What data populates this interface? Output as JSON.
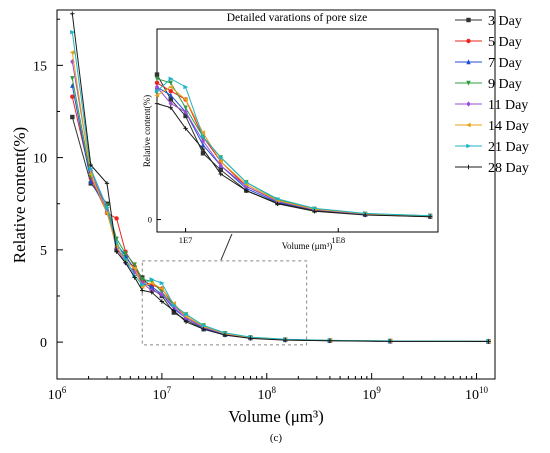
{
  "chart_data": {
    "type": "line",
    "x_scale": "log",
    "xlabel": "Volume (μm³)",
    "ylabel": "Relative content(%)",
    "xlim": [
      1000000,
      15000000000
    ],
    "ylim": [
      -2,
      18
    ],
    "x_ticks": [
      {
        "value": 1000000,
        "base": "10",
        "exp": "6"
      },
      {
        "value": 10000000,
        "base": "10",
        "exp": "7"
      },
      {
        "value": 100000000,
        "base": "10",
        "exp": "8"
      },
      {
        "value": 1000000000,
        "base": "10",
        "exp": "9"
      },
      {
        "value": 10000000000,
        "base": "10",
        "exp": "10"
      }
    ],
    "y_ticks": [
      {
        "value": 0,
        "label": "0"
      },
      {
        "value": 5,
        "label": "5"
      },
      {
        "value": 10,
        "label": "10"
      },
      {
        "value": 15,
        "label": "15"
      }
    ],
    "caption": "(c)",
    "legend_position": "top-right",
    "series": [
      {
        "name": "3 Day",
        "color": "#333333",
        "marker": "square",
        "points": [
          [
            1400000,
            12.2
          ],
          [
            2100000,
            8.6
          ],
          [
            3000000,
            7.5
          ],
          [
            3700000,
            5.0
          ],
          [
            4500000,
            4.6
          ],
          [
            5500000,
            4.0
          ],
          [
            6500000,
            3.5
          ],
          [
            8000000,
            2.9
          ],
          [
            10000000,
            2.5
          ],
          [
            13000000,
            1.6
          ],
          [
            17000000,
            1.2
          ],
          [
            25000000,
            0.7
          ],
          [
            40000000,
            0.4
          ],
          [
            70000000,
            0.22
          ],
          [
            150000000,
            0.12
          ],
          [
            400000000,
            0.07
          ],
          [
            1500000000,
            0.05
          ],
          [
            13000000000,
            0.03
          ]
        ]
      },
      {
        "name": "5 Day",
        "color": "#e8261e",
        "marker": "circle",
        "points": [
          [
            1400000,
            13.3
          ],
          [
            2100000,
            8.9
          ],
          [
            3000000,
            7.0
          ],
          [
            3700000,
            6.7
          ],
          [
            4500000,
            4.9
          ],
          [
            5500000,
            4.1
          ],
          [
            6500000,
            3.3
          ],
          [
            8000000,
            3.1
          ],
          [
            10000000,
            2.9
          ],
          [
            13000000,
            2.0
          ],
          [
            17000000,
            1.4
          ],
          [
            25000000,
            0.8
          ],
          [
            40000000,
            0.45
          ],
          [
            70000000,
            0.25
          ],
          [
            150000000,
            0.14
          ],
          [
            400000000,
            0.08
          ],
          [
            1500000000,
            0.06
          ],
          [
            13000000000,
            0.05
          ]
        ]
      },
      {
        "name": "7 Day",
        "color": "#1f4fd6",
        "marker": "triangle",
        "points": [
          [
            1400000,
            13.9
          ],
          [
            2100000,
            8.7
          ],
          [
            3000000,
            7.2
          ],
          [
            3700000,
            5.3
          ],
          [
            4500000,
            4.7
          ],
          [
            5500000,
            3.9
          ],
          [
            6500000,
            3.2
          ],
          [
            8000000,
            3.0
          ],
          [
            10000000,
            2.6
          ],
          [
            13000000,
            1.8
          ],
          [
            17000000,
            1.3
          ],
          [
            25000000,
            0.75
          ],
          [
            40000000,
            0.42
          ],
          [
            70000000,
            0.24
          ],
          [
            150000000,
            0.13
          ],
          [
            400000000,
            0.08
          ],
          [
            1500000000,
            0.05
          ],
          [
            13000000000,
            0.04
          ]
        ]
      },
      {
        "name": "9 Day",
        "color": "#2e9c3e",
        "marker": "triangle-down",
        "points": [
          [
            1400000,
            14.3
          ],
          [
            2100000,
            9.0
          ],
          [
            3000000,
            7.4
          ],
          [
            3700000,
            5.6
          ],
          [
            4500000,
            4.8
          ],
          [
            5500000,
            4.2
          ],
          [
            6500000,
            3.4
          ],
          [
            8000000,
            3.3
          ],
          [
            10000000,
            2.7
          ],
          [
            13000000,
            2.0
          ],
          [
            17000000,
            1.5
          ],
          [
            25000000,
            0.9
          ],
          [
            40000000,
            0.48
          ],
          [
            70000000,
            0.26
          ],
          [
            150000000,
            0.14
          ],
          [
            400000000,
            0.09
          ],
          [
            1500000000,
            0.06
          ],
          [
            13000000000,
            0.05
          ]
        ]
      },
      {
        "name": "11 Day",
        "color": "#9b4fd6",
        "marker": "diamond",
        "points": [
          [
            1400000,
            15.2
          ],
          [
            2100000,
            9.3
          ],
          [
            3000000,
            7.1
          ],
          [
            3700000,
            5.1
          ],
          [
            4500000,
            4.3
          ],
          [
            5500000,
            3.8
          ],
          [
            6500000,
            3.2
          ],
          [
            8000000,
            2.8
          ],
          [
            10000000,
            2.6
          ],
          [
            13000000,
            1.9
          ],
          [
            17000000,
            1.3
          ],
          [
            25000000,
            0.8
          ],
          [
            40000000,
            0.44
          ],
          [
            70000000,
            0.24
          ],
          [
            150000000,
            0.13
          ],
          [
            400000000,
            0.08
          ],
          [
            1500000000,
            0.05
          ],
          [
            13000000000,
            0.04
          ]
        ]
      },
      {
        "name": "14 Day",
        "color": "#e8a21a",
        "marker": "triangle-left",
        "points": [
          [
            1400000,
            15.7
          ],
          [
            2100000,
            9.1
          ],
          [
            3000000,
            7.0
          ],
          [
            3700000,
            5.2
          ],
          [
            4500000,
            4.4
          ],
          [
            5500000,
            4.0
          ],
          [
            6500000,
            3.0
          ],
          [
            8000000,
            3.2
          ],
          [
            10000000,
            2.9
          ],
          [
            13000000,
            2.1
          ],
          [
            17000000,
            1.4
          ],
          [
            25000000,
            0.85
          ],
          [
            40000000,
            0.46
          ],
          [
            70000000,
            0.25
          ],
          [
            150000000,
            0.14
          ],
          [
            400000000,
            0.08
          ],
          [
            1500000000,
            0.06
          ],
          [
            13000000000,
            0.04
          ]
        ]
      },
      {
        "name": "21 Day",
        "color": "#1fb4c4",
        "marker": "triangle-right",
        "points": [
          [
            1400000,
            16.8
          ],
          [
            2100000,
            9.4
          ],
          [
            3000000,
            7.3
          ],
          [
            3700000,
            5.4
          ],
          [
            4500000,
            4.5
          ],
          [
            5500000,
            3.6
          ],
          [
            6500000,
            3.1
          ],
          [
            8000000,
            3.4
          ],
          [
            10000000,
            3.2
          ],
          [
            13000000,
            2.0
          ],
          [
            17000000,
            1.5
          ],
          [
            25000000,
            0.9
          ],
          [
            40000000,
            0.5
          ],
          [
            70000000,
            0.27
          ],
          [
            150000000,
            0.15
          ],
          [
            400000000,
            0.09
          ],
          [
            1500000000,
            0.06
          ],
          [
            13000000000,
            0.05
          ]
        ]
      },
      {
        "name": "28 Day",
        "color": "#1a1a1a",
        "marker": "plus",
        "points": [
          [
            1400000,
            17.8
          ],
          [
            2100000,
            9.6
          ],
          [
            3000000,
            8.6
          ],
          [
            3700000,
            4.9
          ],
          [
            4500000,
            4.3
          ],
          [
            5500000,
            3.5
          ],
          [
            6500000,
            2.8
          ],
          [
            8000000,
            2.7
          ],
          [
            10000000,
            2.2
          ],
          [
            13000000,
            1.7
          ],
          [
            17000000,
            1.1
          ],
          [
            25000000,
            0.7
          ],
          [
            40000000,
            0.38
          ],
          [
            70000000,
            0.2
          ],
          [
            150000000,
            0.11
          ],
          [
            400000000,
            0.07
          ],
          [
            1500000000,
            0.04
          ],
          [
            13000000000,
            0.03
          ]
        ]
      }
    ],
    "inset": {
      "title": "Detailed varations of pore size",
      "xlabel": "Volume (μm³)",
      "ylabel": "Relative content(%)",
      "x_scale": "log",
      "xlim": [
        6500000,
        450000000
      ],
      "ylim": [
        -0.3,
        4.6
      ],
      "x_ticks": [
        {
          "value": 10000000,
          "label": "1E7"
        },
        {
          "value": 100000000,
          "label": "1E8"
        }
      ],
      "y_ticks": [
        {
          "value": 0,
          "label": "0"
        }
      ],
      "source_region": {
        "xlim": [
          6500000,
          240000000
        ],
        "ylim": [
          -0.15,
          4.4
        ]
      }
    }
  }
}
